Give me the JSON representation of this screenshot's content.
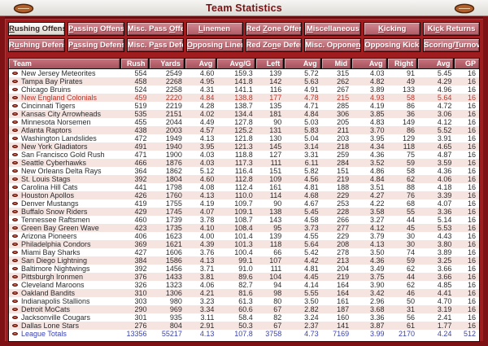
{
  "window": {
    "title": "Team Statistics"
  },
  "icons": {
    "titlebar_left": "football-icon",
    "titlebar_right": "football-icon",
    "row_bullet": "football-bullet-icon"
  },
  "colors": {
    "frame": "#7d1113",
    "panel_red": "#a01d1f",
    "button_rose": "#b05a64",
    "header_rose": "#a5525c",
    "row_pink": "#f6e4e1",
    "user_team_text": "#c13227",
    "totals_text": "#3a43b0",
    "title_text": "#7b1113"
  },
  "tabs": {
    "row1": [
      {
        "label": "Rushing Offense",
        "underline": 0,
        "active": true
      },
      {
        "label": "Passing Offense",
        "underline": 0,
        "active": false
      },
      {
        "label": "Misc. Pass Offense",
        "underline": 11,
        "active": false
      },
      {
        "label": "Linemen",
        "underline": 0,
        "active": false
      },
      {
        "label": "Red Zone Offense",
        "underline": 4,
        "active": false
      },
      {
        "label": "Miscellaneous",
        "underline": 0,
        "active": false
      },
      {
        "label": "Kicking",
        "underline": 0,
        "active": false
      },
      {
        "label": "Kick Returns",
        "underline": 2,
        "active": false
      }
    ],
    "row2": [
      {
        "label": "Rushing Defense",
        "underline": 1,
        "active": false
      },
      {
        "label": "Passing Defense",
        "underline": 1,
        "active": false
      },
      {
        "label": "Misc. Pass Defense",
        "underline": 7,
        "active": false
      },
      {
        "label": "Opposing Linemen",
        "underline": 0,
        "active": false
      },
      {
        "label": "Red Zone Defense",
        "underline": 6,
        "active": false
      },
      {
        "label": "Misc. Opponents",
        "underline": 12,
        "active": false
      },
      {
        "label": "Opposing Kicking",
        "underline": -1,
        "active": false
      },
      {
        "label": "Scoring/Turnovers",
        "underline": 8,
        "active": false
      }
    ]
  },
  "table": {
    "columns": [
      "Team",
      "Rush",
      "Yards",
      "Avg",
      "Avg/G",
      "Left",
      "Avg",
      "Mid",
      "Avg",
      "Right",
      "Avg",
      "GP"
    ],
    "rows": [
      {
        "team": "New Jersey Meteorites",
        "values": [
          "554",
          "2549",
          "4.60",
          "159.3",
          "139",
          "5.72",
          "315",
          "4.03",
          "91",
          "5.45",
          "16"
        ]
      },
      {
        "team": "Tampa Bay Pirates",
        "values": [
          "458",
          "2268",
          "4.95",
          "141.8",
          "142",
          "5.63",
          "262",
          "4.82",
          "49",
          "4.29",
          "16"
        ]
      },
      {
        "team": "Chicago Bruins",
        "values": [
          "524",
          "2258",
          "4.31",
          "141.1",
          "116",
          "4.91",
          "267",
          "3.89",
          "133",
          "4.96",
          "16"
        ]
      },
      {
        "team": "New England Colonials",
        "values": [
          "459",
          "2220",
          "4.84",
          "138.8",
          "177",
          "4.78",
          "215",
          "4.93",
          "58",
          "5.64",
          "16"
        ],
        "variant": "user"
      },
      {
        "team": "Cincinnati Tigers",
        "values": [
          "519",
          "2219",
          "4.28",
          "138.7",
          "135",
          "4.71",
          "285",
          "4.19",
          "86",
          "4.72",
          "16"
        ]
      },
      {
        "team": "Kansas City Arrowheads",
        "values": [
          "535",
          "2151",
          "4.02",
          "134.4",
          "181",
          "4.84",
          "306",
          "3.85",
          "36",
          "3.06",
          "16"
        ]
      },
      {
        "team": "Minnesota Norsemen",
        "values": [
          "455",
          "2044",
          "4.49",
          "127.8",
          "90",
          "5.03",
          "205",
          "4.83",
          "149",
          "4.12",
          "16"
        ]
      },
      {
        "team": "Atlanta Raptors",
        "values": [
          "438",
          "2003",
          "4.57",
          "125.2",
          "131",
          "5.83",
          "211",
          "3.70",
          "86",
          "5.52",
          "16"
        ]
      },
      {
        "team": "Washington Landslides",
        "values": [
          "472",
          "1949",
          "4.13",
          "121.8",
          "130",
          "5.04",
          "203",
          "3.95",
          "129",
          "3.91",
          "16"
        ]
      },
      {
        "team": "New York Gladiators",
        "values": [
          "491",
          "1940",
          "3.95",
          "121.3",
          "145",
          "3.14",
          "218",
          "4.34",
          "118",
          "4.65",
          "16"
        ]
      },
      {
        "team": "San Francisco Gold Rush",
        "values": [
          "471",
          "1900",
          "4.03",
          "118.8",
          "127",
          "3.31",
          "259",
          "4.36",
          "75",
          "4.87",
          "16"
        ]
      },
      {
        "team": "Seattle Cyberhawks",
        "values": [
          "466",
          "1876",
          "4.03",
          "117.3",
          "111",
          "6.11",
          "284",
          "3.52",
          "59",
          "3.59",
          "16"
        ]
      },
      {
        "team": "New Orleans Delta Rays",
        "values": [
          "364",
          "1862",
          "5.12",
          "116.4",
          "151",
          "5.82",
          "151",
          "4.86",
          "58",
          "4.36",
          "16"
        ]
      },
      {
        "team": "St. Louis Stags",
        "values": [
          "392",
          "1804",
          "4.60",
          "112.8",
          "109",
          "4.56",
          "219",
          "4.84",
          "62",
          "4.06",
          "16"
        ]
      },
      {
        "team": "Carolina Hill Cats",
        "values": [
          "441",
          "1798",
          "4.08",
          "112.4",
          "161",
          "4.81",
          "188",
          "3.51",
          "88",
          "4.18",
          "16"
        ]
      },
      {
        "team": "Houston Apollos",
        "values": [
          "426",
          "1760",
          "4.13",
          "110.0",
          "114",
          "4.68",
          "229",
          "4.27",
          "76",
          "3.39",
          "16"
        ]
      },
      {
        "team": "Denver Mustangs",
        "values": [
          "419",
          "1755",
          "4.19",
          "109.7",
          "90",
          "4.67",
          "253",
          "4.22",
          "68",
          "4.07",
          "16"
        ]
      },
      {
        "team": "Buffalo Snow Riders",
        "values": [
          "429",
          "1745",
          "4.07",
          "109.1",
          "138",
          "5.45",
          "228",
          "3.58",
          "55",
          "3.36",
          "16"
        ]
      },
      {
        "team": "Tennessee Raftsmen",
        "values": [
          "460",
          "1739",
          "3.78",
          "108.7",
          "143",
          "4.58",
          "266",
          "3.27",
          "44",
          "5.14",
          "16"
        ]
      },
      {
        "team": "Green Bay Green Wave",
        "values": [
          "423",
          "1735",
          "4.10",
          "108.4",
          "95",
          "3.73",
          "277",
          "4.12",
          "45",
          "5.53",
          "16"
        ]
      },
      {
        "team": "Arizona Pioneers",
        "values": [
          "406",
          "1623",
          "4.00",
          "101.4",
          "139",
          "4.55",
          "229",
          "3.79",
          "30",
          "4.43",
          "16"
        ]
      },
      {
        "team": "Philadelphia Condors",
        "values": [
          "369",
          "1621",
          "4.39",
          "101.3",
          "118",
          "5.64",
          "208",
          "4.13",
          "30",
          "3.80",
          "16"
        ]
      },
      {
        "team": "Miami Bay Sharks",
        "values": [
          "427",
          "1606",
          "3.76",
          "100.4",
          "66",
          "5.42",
          "278",
          "3.50",
          "74",
          "3.89",
          "16"
        ]
      },
      {
        "team": "San Diego Lightning",
        "values": [
          "384",
          "1586",
          "4.13",
          "99.1",
          "107",
          "4.42",
          "213",
          "4.36",
          "59",
          "3.25",
          "16"
        ]
      },
      {
        "team": "Baltimore Nightwings",
        "values": [
          "392",
          "1456",
          "3.71",
          "91.0",
          "111",
          "4.81",
          "204",
          "3.49",
          "62",
          "3.66",
          "16"
        ]
      },
      {
        "team": "Pittsburgh Ironmen",
        "values": [
          "376",
          "1433",
          "3.81",
          "89.6",
          "104",
          "4.45",
          "219",
          "3.75",
          "44",
          "3.66",
          "16"
        ]
      },
      {
        "team": "Cleveland Maroons",
        "values": [
          "326",
          "1323",
          "4.06",
          "82.7",
          "94",
          "4.14",
          "164",
          "3.90",
          "62",
          "4.85",
          "16"
        ]
      },
      {
        "team": "Oakland Bandits",
        "values": [
          "310",
          "1306",
          "4.21",
          "81.6",
          "98",
          "5.55",
          "164",
          "3.42",
          "46",
          "4.41",
          "16"
        ]
      },
      {
        "team": "Indianapolis Stallions",
        "values": [
          "303",
          "980",
          "3.23",
          "61.3",
          "80",
          "3.50",
          "161",
          "2.96",
          "50",
          "4.70",
          "16"
        ]
      },
      {
        "team": "Detroit MoCats",
        "values": [
          "290",
          "969",
          "3.34",
          "60.6",
          "67",
          "2.82",
          "187",
          "3.68",
          "31",
          "3.19",
          "16"
        ]
      },
      {
        "team": "Jacksonville Cougars",
        "values": [
          "301",
          "935",
          "3.11",
          "58.4",
          "82",
          "3.24",
          "160",
          "3.36",
          "56",
          "2.41",
          "16"
        ]
      },
      {
        "team": "Dallas Lone Stars",
        "values": [
          "276",
          "804",
          "2.91",
          "50.3",
          "67",
          "2.37",
          "141",
          "3.87",
          "61",
          "1.77",
          "16"
        ]
      },
      {
        "team": "League Totals",
        "values": [
          "13356",
          "55217",
          "4.13",
          "107.8",
          "3758",
          "4.73",
          "7169",
          "3.99",
          "2170",
          "4.24",
          "512"
        ],
        "variant": "totals"
      }
    ]
  }
}
